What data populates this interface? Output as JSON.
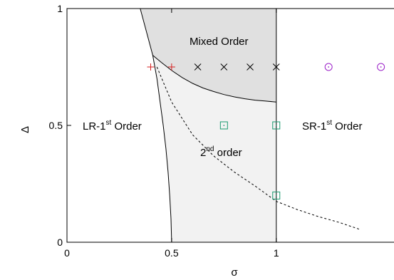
{
  "chart_data": {
    "type": "scatter",
    "title": "",
    "xlabel": "σ",
    "ylabel": "Δ",
    "xlim": [
      0,
      1.6
    ],
    "ylim": [
      0,
      1
    ],
    "xticks": [
      {
        "value": 0,
        "label": "0"
      },
      {
        "value": 0.5,
        "label": "0.5"
      },
      {
        "value": 1,
        "label": "1"
      }
    ],
    "yticks": [
      {
        "value": 0,
        "label": "0"
      },
      {
        "value": 0.5,
        "label": "0.5"
      },
      {
        "value": 1,
        "label": "1"
      }
    ],
    "grid": false,
    "regions": [
      {
        "key": "mixed",
        "label": "Mixed Order",
        "fill": "#e0e0e0"
      },
      {
        "key": "second",
        "label_main": "2",
        "label_sup": "nd",
        "label_rest": " order",
        "fill": "#f2f2f2"
      },
      {
        "key": "lr_first",
        "label_main": "LR-1",
        "label_sup": "st",
        "label_rest": " Order"
      },
      {
        "key": "sr_first",
        "label_main": "SR-1",
        "label_sup": "st",
        "label_rest": " Order"
      }
    ],
    "curves": {
      "lr_boundary": [
        [
          0.35,
          1.0
        ],
        [
          0.38,
          0.9
        ],
        [
          0.41,
          0.8
        ],
        [
          0.43,
          0.7
        ],
        [
          0.445,
          0.6
        ],
        [
          0.46,
          0.5
        ],
        [
          0.473,
          0.4
        ],
        [
          0.483,
          0.3
        ],
        [
          0.491,
          0.2
        ],
        [
          0.497,
          0.1
        ],
        [
          0.5,
          0.0
        ]
      ],
      "mixed_boundary": [
        [
          0.41,
          0.8
        ],
        [
          0.45,
          0.77
        ],
        [
          0.5,
          0.735
        ],
        [
          0.55,
          0.705
        ],
        [
          0.6,
          0.68
        ],
        [
          0.65,
          0.66
        ],
        [
          0.7,
          0.645
        ],
        [
          0.75,
          0.632
        ],
        [
          0.8,
          0.622
        ],
        [
          0.85,
          0.614
        ],
        [
          0.9,
          0.608
        ],
        [
          0.95,
          0.604
        ],
        [
          1.0,
          0.6
        ]
      ],
      "sr_boundary": [
        [
          1.0,
          0.0
        ],
        [
          1.0,
          1.0
        ]
      ],
      "dashed": [
        [
          0.43,
          0.75
        ],
        [
          0.5,
          0.6
        ],
        [
          0.6,
          0.46
        ],
        [
          0.7,
          0.37
        ],
        [
          0.8,
          0.3
        ],
        [
          0.9,
          0.24
        ],
        [
          1.0,
          0.175
        ],
        [
          1.1,
          0.14
        ],
        [
          1.2,
          0.11
        ],
        [
          1.3,
          0.085
        ],
        [
          1.4,
          0.055
        ]
      ]
    },
    "series": [
      {
        "marker": "plus",
        "color": "#d62020",
        "points": [
          [
            0.4,
            0.75
          ],
          [
            0.5,
            0.75
          ]
        ]
      },
      {
        "marker": "cross",
        "color": "#000000",
        "points": [
          [
            0.625,
            0.75
          ],
          [
            0.75,
            0.75
          ],
          [
            0.875,
            0.75
          ],
          [
            1.0,
            0.75
          ]
        ]
      },
      {
        "marker": "circle-dot",
        "color": "#9b20c8",
        "points": [
          [
            1.25,
            0.75
          ],
          [
            1.5,
            0.75
          ]
        ]
      },
      {
        "marker": "square-dot",
        "color": "#1a9a70",
        "points": [
          [
            0.75,
            0.5
          ],
          [
            1.0,
            0.5
          ],
          [
            1.0,
            0.2
          ]
        ]
      }
    ]
  }
}
